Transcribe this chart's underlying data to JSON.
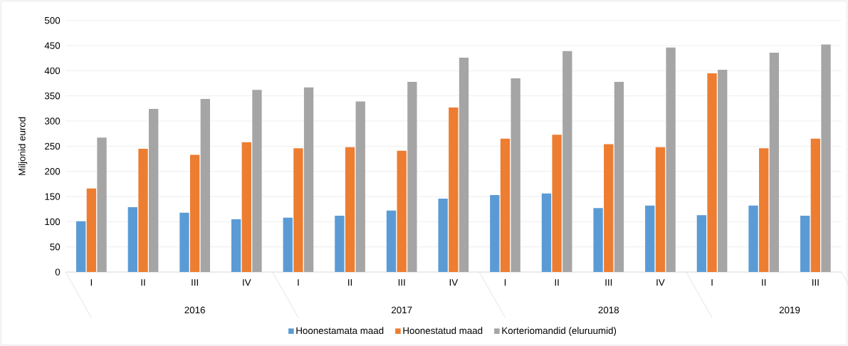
{
  "chart_data": {
    "type": "bar",
    "ylabel": "Miljonid eurod",
    "categories": [
      "I",
      "II",
      "III",
      "IV",
      "I",
      "II",
      "III",
      "IV",
      "I",
      "II",
      "III",
      "IV",
      "I",
      "II",
      "III"
    ],
    "annotations": [
      "2016",
      "2017",
      "2018",
      "2019"
    ],
    "series": [
      {
        "name": "Hoonestamata maad",
        "color": "#5b9bd5",
        "values": [
          101,
          129,
          118,
          105,
          108,
          112,
          122,
          146,
          153,
          156,
          127,
          132,
          113,
          132,
          112
        ]
      },
      {
        "name": "Hoonestatud maad",
        "color": "#ed7d31",
        "values": [
          166,
          245,
          233,
          258,
          246,
          248,
          241,
          327,
          265,
          273,
          254,
          248,
          395,
          246,
          265
        ]
      },
      {
        "name": "Korteriomandid (eluruumid)",
        "color": "#a5a5a5",
        "values": [
          267,
          324,
          344,
          362,
          367,
          339,
          378,
          426,
          385,
          439,
          378,
          446,
          402,
          436,
          452
        ]
      }
    ],
    "ylim": [
      0,
      500
    ],
    "yticks": [
      0,
      50,
      100,
      150,
      200,
      250,
      300,
      350,
      400,
      450,
      500
    ],
    "grid": "y",
    "legend": "bottom"
  }
}
